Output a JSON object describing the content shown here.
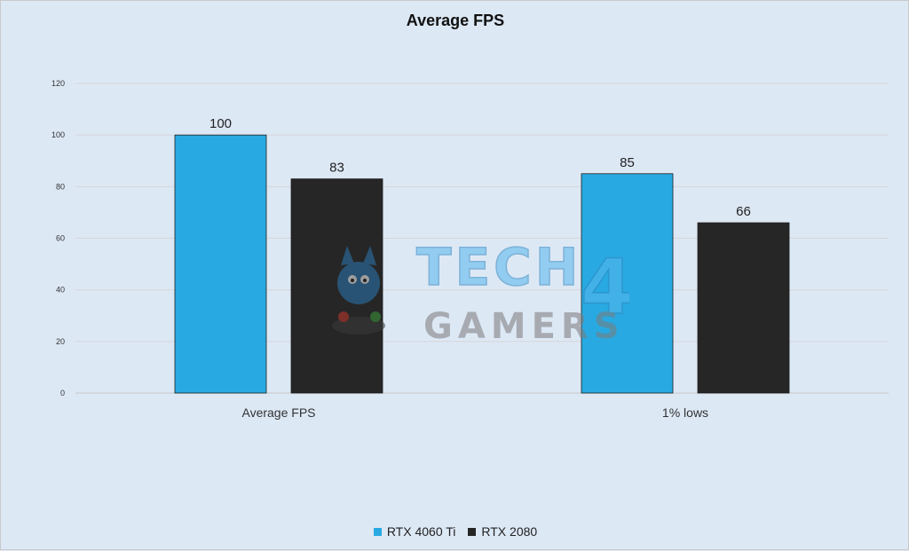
{
  "chart_data": {
    "type": "bar",
    "title": "Average FPS",
    "categories": [
      "Average FPS",
      "1% lows"
    ],
    "series": [
      {
        "name": "RTX 4060 Ti",
        "values": [
          100,
          85
        ],
        "color": "#29a9e1"
      },
      {
        "name": "RTX 2080",
        "values": [
          83,
          66
        ],
        "color": "#262626"
      }
    ],
    "ylim": [
      0,
      120
    ],
    "yticks": [
      0,
      20,
      40,
      60,
      80,
      100,
      120
    ],
    "grid": true,
    "legend_position": "bottom",
    "xlabel": "",
    "ylabel": ""
  },
  "watermark": {
    "line1": "TECH",
    "line2": "GAMERS",
    "glyph": "4"
  }
}
